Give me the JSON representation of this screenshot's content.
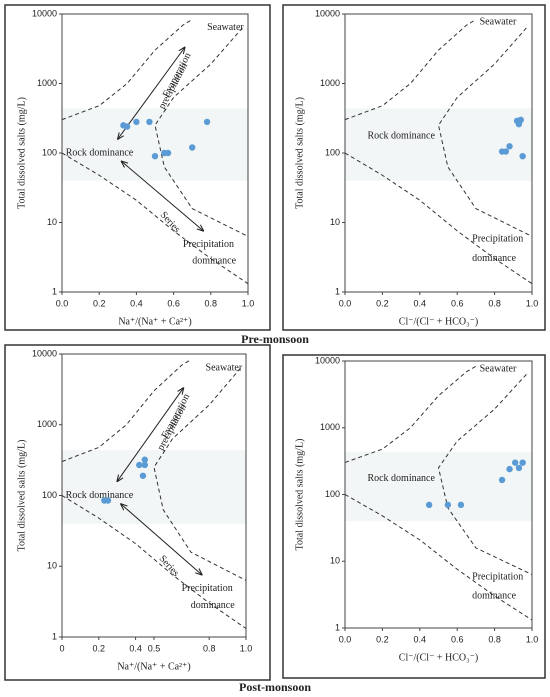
{
  "figure_captions": [
    "Pre-monsoon",
    "Post-monsoon"
  ],
  "chart_data": [
    {
      "type": "scatter",
      "log_y": true,
      "color": "#5b9bd5",
      "x_label": "Na⁺/(Na⁺ + Ca²⁺)",
      "y_label": "Total dissolved salts (mg/L)",
      "annotations": [
        "Seawater",
        "Evaporation",
        "precipitation",
        "Rock dominance",
        "Series",
        "Precipitation",
        "dominance"
      ],
      "x": [
        0.33,
        0.35,
        0.4,
        0.47,
        0.5,
        0.55,
        0.57,
        0.7,
        0.78
      ],
      "values": [
        250,
        240,
        280,
        280,
        90,
        100,
        100,
        120,
        280
      ],
      "xlim": [
        0,
        1
      ],
      "ylim": [
        1,
        10000
      ],
      "xticks": [
        {
          "value": 0,
          "label": "0.0"
        },
        0.2,
        0.4,
        0.6,
        0.8,
        {
          "value": 1,
          "label": "1.0"
        }
      ],
      "yticks": [
        1,
        10,
        100,
        1000,
        10000
      ]
    },
    {
      "type": "scatter",
      "log_y": true,
      "color": "#5b9bd5",
      "x_label": "Cl⁻/(Cl⁻ + HCO₃⁻)",
      "y_label": "Total dissolved salts (mg/L)",
      "annotations": [
        "Seawater",
        "Rock dominance",
        "Precipitation",
        "dominance"
      ],
      "x": [
        0.84,
        0.86,
        0.88,
        0.92,
        0.93,
        0.94,
        0.95,
        0.93
      ],
      "values": [
        105,
        105,
        125,
        290,
        260,
        300,
        90,
        280
      ],
      "xlim": [
        0,
        1
      ],
      "ylim": [
        1,
        10000
      ],
      "xticks": [
        {
          "value": 0,
          "label": "0.0"
        },
        0.2,
        0.4,
        0.6,
        0.8,
        {
          "value": 1,
          "label": "1.0"
        }
      ],
      "yticks": [
        1,
        10,
        100,
        1000,
        10000
      ]
    },
    {
      "type": "scatter",
      "log_y": true,
      "color": "#5b9bd5",
      "x_label": "Na⁺/(Na⁺ + Ca²⁺)",
      "y_label": "Total dissolved salts (mg/L)",
      "annotations": [
        "Seawater",
        "Evaporation",
        "precipitation",
        "Rock dominance",
        "Series",
        "Precipitation",
        "dominance"
      ],
      "x": [
        0.23,
        0.25,
        0.42,
        0.45,
        0.45,
        0.44
      ],
      "values": [
        85,
        85,
        270,
        320,
        270,
        190
      ],
      "xlim": [
        0,
        1
      ],
      "ylim": [
        1,
        10000
      ],
      "xticks": [
        {
          "value": 0,
          "label": "0"
        },
        0.2,
        0.4,
        0.5,
        0.8,
        {
          "value": 1,
          "label": "1.0"
        }
      ],
      "yticks": [
        1,
        10,
        100,
        1000,
        10000
      ]
    },
    {
      "type": "scatter",
      "log_y": true,
      "color": "#5b9bd5",
      "x_label": "Cl⁻/(Cl⁻ + HCO₃⁻)",
      "y_label": "Total dissolved salts (mg/L)",
      "annotations": [
        "Seawater",
        "Rock dominance",
        "Precipitation",
        "dominance"
      ],
      "x": [
        0.45,
        0.55,
        0.62,
        0.84,
        0.88,
        0.91,
        0.93,
        0.95
      ],
      "values": [
        70,
        70,
        70,
        165,
        240,
        300,
        250,
        300
      ],
      "xlim": [
        0,
        1
      ],
      "ylim": [
        1,
        10000
      ],
      "xticks": [
        {
          "value": 0,
          "label": "0.0"
        },
        0.2,
        0.4,
        0.6,
        0.8,
        {
          "value": 1,
          "label": "1.0"
        }
      ],
      "yticks": [
        1,
        10,
        100,
        1000,
        10000
      ]
    }
  ]
}
